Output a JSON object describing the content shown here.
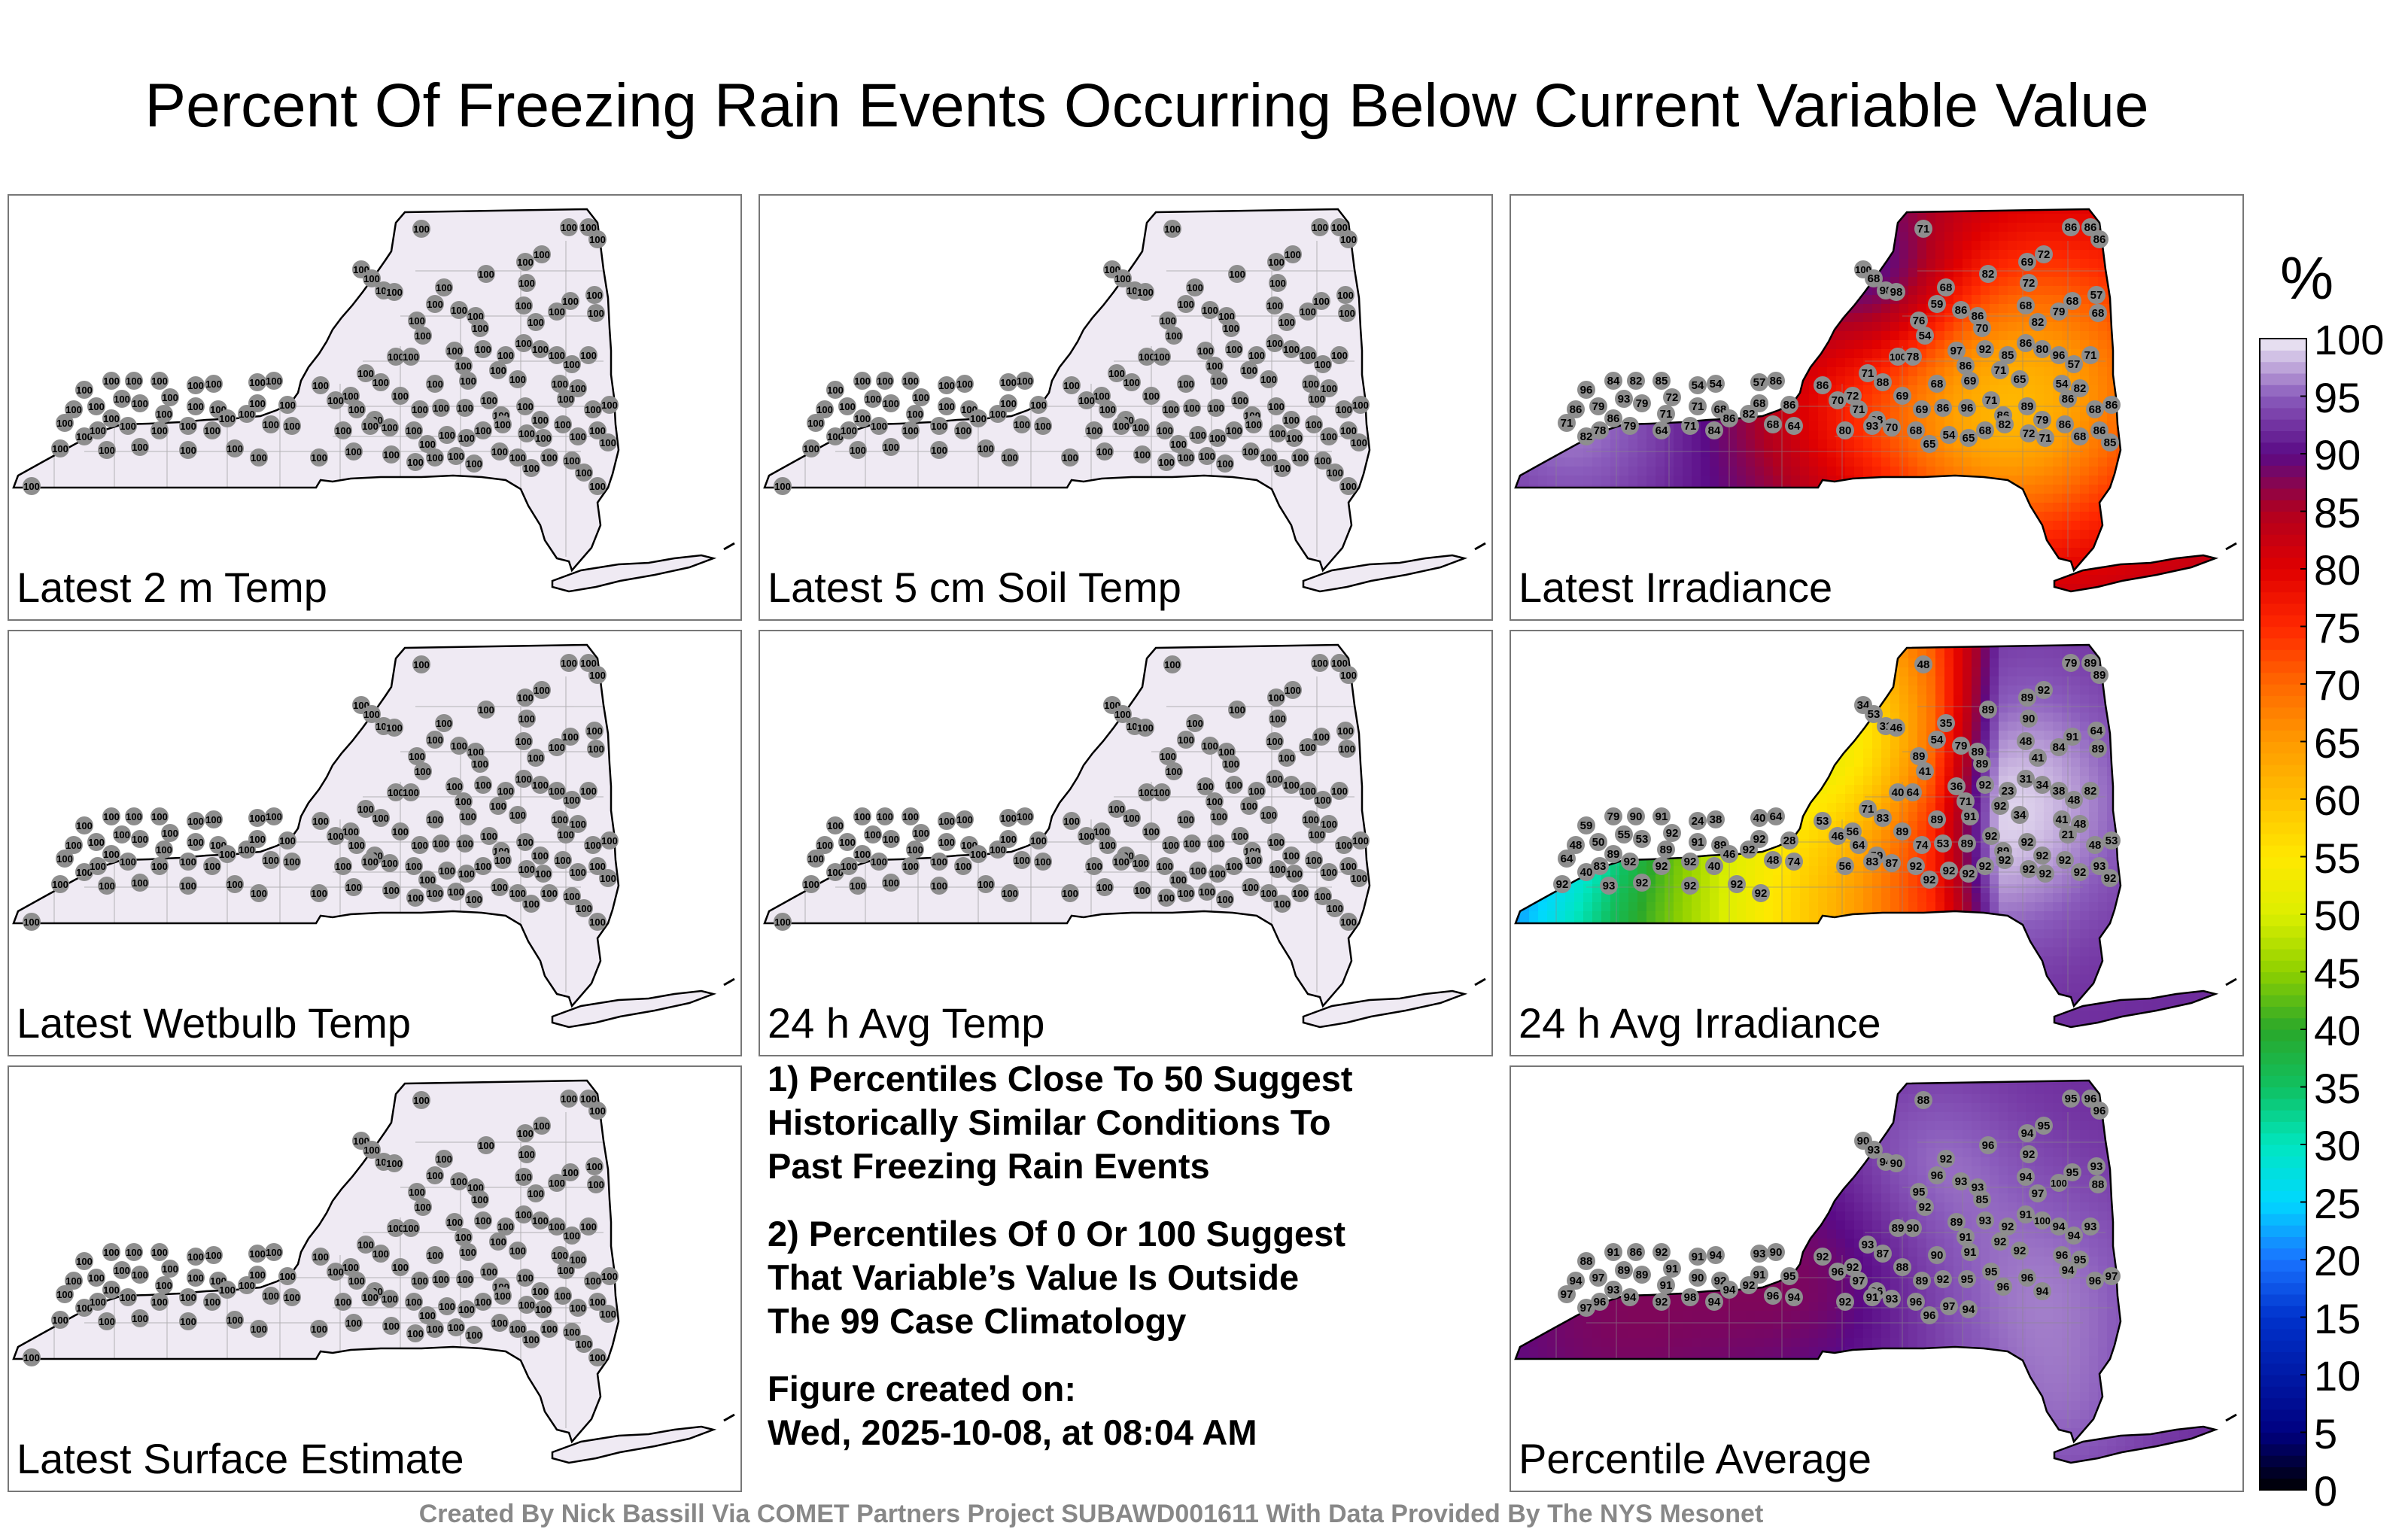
{
  "title": "Percent Of Freezing Rain Events Occurring Below Current Variable Value",
  "panels": [
    {
      "label": "Latest 2 m Temp",
      "fill": "uniform",
      "stations": [
        "100",
        "100",
        "100",
        "100",
        "100",
        "100",
        "100",
        "100",
        "100",
        "100",
        "100",
        "100",
        "100",
        "100",
        "100",
        "100",
        "100",
        "100",
        "100",
        "100",
        "100",
        "100",
        "100",
        "100",
        "100",
        "100",
        "100",
        "100",
        "100",
        "100",
        "100",
        "100",
        "100",
        "100",
        "100",
        "100",
        "100",
        "100",
        "100",
        "100",
        "100",
        "100",
        "100",
        "100",
        "100",
        "100",
        "100",
        "100",
        "100",
        "100",
        "100",
        "100",
        "100",
        "100",
        "100",
        "100",
        "100",
        "100",
        "100",
        "100",
        "100",
        "100",
        "100",
        "100",
        "100",
        "100",
        "100",
        "100",
        "100",
        "100",
        "100",
        "100",
        "100",
        "100",
        "100",
        "100",
        "100",
        "100",
        "100",
        "100",
        "100",
        "100",
        "100",
        "100",
        "100",
        "100",
        "100",
        "100",
        "100",
        "100",
        "100",
        "100",
        "100",
        "100",
        "100",
        "100",
        "100",
        "100",
        "100",
        "100",
        "100",
        "100",
        "100",
        "100",
        "100",
        "100",
        "100",
        "100",
        "100",
        "100",
        "100",
        "100",
        "100",
        "100",
        "100",
        "100",
        "100",
        "100",
        "100",
        "100",
        "100",
        "100",
        "100",
        "100",
        "100",
        "100"
      ]
    },
    {
      "label": "Latest 5 cm Soil Temp",
      "fill": "uniform",
      "stations": [
        "100",
        "100",
        "100",
        "100",
        "100",
        "100",
        "100",
        "100",
        "100",
        "100",
        "100",
        "100",
        "100",
        "100",
        "100",
        "100",
        "100",
        "100",
        "100",
        "100",
        "100",
        "100",
        "100",
        "100",
        "100",
        "100",
        "100",
        "100",
        "100",
        "100",
        "100",
        "100",
        "100",
        "100",
        "100",
        "100",
        "100",
        "100",
        "100",
        "100",
        "100",
        "100",
        "100",
        "100",
        "100",
        "100",
        "100",
        "100",
        "100",
        "100",
        "100",
        "100",
        "100",
        "100",
        "100",
        "100",
        "100",
        "100",
        "100",
        "100",
        "100",
        "100",
        "100",
        "100",
        "100",
        "100",
        "100",
        "100",
        "100",
        "100",
        "100",
        "100",
        "100",
        "100",
        "100",
        "100",
        "100",
        "100",
        "100",
        "100",
        "100",
        "100",
        "100",
        "100",
        "100",
        "100",
        "100",
        "100",
        "100",
        "100",
        "100",
        "100",
        "100",
        "100",
        "100",
        "100",
        "100",
        "100",
        "100",
        "100",
        "100",
        "100",
        "100",
        "100",
        "100",
        "100",
        "100",
        "100",
        "100",
        "100",
        "100",
        "100",
        "100",
        "100",
        "100",
        "100",
        "100",
        "100",
        "100",
        "100",
        "100",
        "100",
        "100",
        "100",
        "100",
        "100"
      ]
    },
    {
      "label": "Latest Irradiance",
      "fill": "irradiance",
      "stations": [
        "71",
        "86",
        "86",
        "86",
        "100",
        "68",
        "82",
        "69",
        "72",
        "98",
        "98",
        "68",
        "59",
        "72",
        "68",
        "57",
        "86",
        "86",
        "70",
        "76",
        "54",
        "68",
        "82",
        "79",
        "68",
        "100",
        "78",
        "97",
        "86",
        "92",
        "85",
        "86",
        "80",
        "96",
        "57",
        "71",
        "96",
        "84",
        "82",
        "85",
        "72",
        "54",
        "54",
        "57",
        "86",
        "86",
        "72",
        "71",
        "88",
        "69",
        "68",
        "69",
        "71",
        "65",
        "54",
        "82",
        "86",
        "79",
        "93",
        "79",
        "71",
        "71",
        "68",
        "82",
        "68",
        "86",
        "70",
        "71",
        "68",
        "69",
        "86",
        "96",
        "71",
        "86",
        "89",
        "79",
        "86",
        "68",
        "86",
        "71",
        "82",
        "78",
        "86",
        "79",
        "64",
        "71",
        "84",
        "86",
        "68",
        "64",
        "80",
        "93",
        "70",
        "68",
        "65",
        "54",
        "65",
        "68",
        "82",
        "72",
        "71",
        "86",
        "68",
        "86",
        "85"
      ]
    },
    {
      "label": "Latest Wetbulb Temp",
      "fill": "uniform",
      "stations": [
        "100",
        "100",
        "100",
        "100",
        "100",
        "100",
        "100",
        "100",
        "100",
        "100",
        "100",
        "100",
        "100",
        "100",
        "100",
        "100",
        "100",
        "100",
        "100",
        "100",
        "100",
        "100",
        "100",
        "100",
        "100",
        "100",
        "100",
        "100",
        "100",
        "100",
        "100",
        "100",
        "100",
        "100",
        "100",
        "100",
        "100",
        "100",
        "100",
        "100",
        "100",
        "100",
        "100",
        "100",
        "100",
        "100",
        "100",
        "100",
        "100",
        "100",
        "100",
        "100",
        "100",
        "100",
        "100",
        "100",
        "100",
        "100",
        "100",
        "100",
        "100",
        "100",
        "100",
        "100",
        "100",
        "100",
        "100",
        "100",
        "100",
        "100",
        "100",
        "100",
        "100",
        "100",
        "100",
        "100",
        "100",
        "100",
        "100",
        "100",
        "100",
        "100",
        "100",
        "100",
        "100",
        "100",
        "100",
        "100",
        "100",
        "100",
        "100",
        "100",
        "100",
        "100",
        "100",
        "100",
        "100",
        "100",
        "100",
        "100",
        "100",
        "100",
        "100",
        "100",
        "100",
        "100",
        "100",
        "100",
        "100",
        "100",
        "100",
        "100",
        "100",
        "100",
        "100",
        "100",
        "100",
        "100",
        "100",
        "100",
        "100",
        "100",
        "100",
        "100",
        "100",
        "100"
      ]
    },
    {
      "label": "24 h Avg Temp",
      "fill": "uniform",
      "stations": [
        "100",
        "100",
        "100",
        "100",
        "100",
        "100",
        "100",
        "100",
        "100",
        "100",
        "100",
        "100",
        "100",
        "100",
        "100",
        "100",
        "100",
        "100",
        "100",
        "100",
        "100",
        "100",
        "100",
        "100",
        "100",
        "100",
        "100",
        "100",
        "100",
        "100",
        "100",
        "100",
        "100",
        "100",
        "100",
        "100",
        "100",
        "100",
        "100",
        "100",
        "100",
        "100",
        "100",
        "100",
        "100",
        "100",
        "100",
        "100",
        "100",
        "100",
        "100",
        "100",
        "100",
        "100",
        "100",
        "100",
        "100",
        "100",
        "100",
        "100",
        "100",
        "100",
        "100",
        "100",
        "100",
        "100",
        "100",
        "100",
        "100",
        "100",
        "100",
        "100",
        "100",
        "100",
        "100",
        "100",
        "100",
        "100",
        "100",
        "100",
        "100",
        "100",
        "100",
        "100",
        "100",
        "100",
        "100",
        "100",
        "100",
        "100",
        "100",
        "100",
        "100",
        "100",
        "100",
        "100",
        "100",
        "100",
        "100",
        "100",
        "100",
        "100",
        "100",
        "100",
        "100",
        "100",
        "100",
        "100",
        "100",
        "100",
        "100",
        "100",
        "100",
        "100",
        "100",
        "100",
        "100",
        "100",
        "100",
        "100",
        "100",
        "100",
        "100",
        "100",
        "100",
        "100"
      ]
    },
    {
      "label": "24 h Avg Irradiance",
      "fill": "avgirr",
      "stations": [
        "48",
        "79",
        "89",
        "89",
        "34",
        "53",
        "89",
        "89",
        "92",
        "31",
        "46",
        "35",
        "54",
        "90",
        "91",
        "64",
        "79",
        "89",
        "89",
        "89",
        "41",
        "48",
        "41",
        "84",
        "89",
        "40",
        "64",
        "36",
        "71",
        "92",
        "23",
        "31",
        "34",
        "38",
        "48",
        "82",
        "59",
        "79",
        "90",
        "91",
        "92",
        "24",
        "38",
        "40",
        "64",
        "53",
        "56",
        "71",
        "83",
        "89",
        "89",
        "91",
        "92",
        "34",
        "41",
        "48",
        "48",
        "50",
        "55",
        "53",
        "89",
        "91",
        "89",
        "92",
        "92",
        "28",
        "46",
        "64",
        "59",
        "74",
        "53",
        "89",
        "92",
        "89",
        "92",
        "92",
        "21",
        "48",
        "53",
        "64",
        "40",
        "83",
        "89",
        "92",
        "92",
        "92",
        "40",
        "46",
        "48",
        "74",
        "56",
        "83",
        "87",
        "92",
        "92",
        "92",
        "92",
        "92",
        "92",
        "92",
        "92",
        "92",
        "92",
        "93",
        "92",
        "92",
        "93",
        "92",
        "92",
        "92",
        "92"
      ]
    },
    {
      "label": "Latest Surface Estimate",
      "fill": "uniform",
      "stations": [
        "100",
        "100",
        "100",
        "100",
        "100",
        "100",
        "100",
        "100",
        "100",
        "100",
        "100",
        "100",
        "100",
        "100",
        "100",
        "100",
        "100",
        "100",
        "100",
        "100",
        "100",
        "100",
        "100",
        "100",
        "100",
        "100",
        "100",
        "100",
        "100",
        "100",
        "100",
        "100",
        "100",
        "100",
        "100",
        "100",
        "100",
        "100",
        "100",
        "100",
        "100",
        "100",
        "100",
        "100",
        "100",
        "100",
        "100",
        "100",
        "100",
        "100",
        "100",
        "100",
        "100",
        "100",
        "100",
        "100",
        "100",
        "100",
        "100",
        "100",
        "100",
        "100",
        "100",
        "100",
        "100",
        "100",
        "100",
        "100",
        "100",
        "100",
        "100",
        "100",
        "100",
        "100",
        "100",
        "100",
        "100",
        "100",
        "100",
        "100",
        "100",
        "100",
        "100",
        "100",
        "100",
        "100",
        "100",
        "100",
        "100",
        "100",
        "100",
        "100",
        "100",
        "100",
        "100",
        "100",
        "100",
        "100",
        "100",
        "100",
        "100",
        "100",
        "100",
        "100",
        "100",
        "100",
        "100",
        "100",
        "100",
        "100",
        "100",
        "100",
        "100",
        "100",
        "100",
        "100",
        "100",
        "100",
        "100",
        "100",
        "100",
        "100",
        "100",
        "100",
        "100",
        "100"
      ]
    },
    {
      "label": "Percentile Average",
      "fill": "average",
      "stations": [
        "88",
        "95",
        "96",
        "96",
        "90",
        "93",
        "96",
        "94",
        "95",
        "94",
        "90",
        "92",
        "96",
        "92",
        "95",
        "93",
        "93",
        "93",
        "85",
        "95",
        "92",
        "94",
        "97",
        "100",
        "88",
        "89",
        "90",
        "89",
        "91",
        "93",
        "92",
        "91",
        "100",
        "94",
        "94",
        "93",
        "88",
        "91",
        "86",
        "92",
        "91",
        "91",
        "94",
        "93",
        "90",
        "92",
        "92",
        "93",
        "87",
        "88",
        "90",
        "91",
        "92",
        "92",
        "96",
        "95",
        "94",
        "97",
        "89",
        "89",
        "91",
        "90",
        "92",
        "92",
        "91",
        "95",
        "96",
        "97",
        "96",
        "89",
        "92",
        "95",
        "95",
        "96",
        "96",
        "94",
        "94",
        "96",
        "97",
        "97",
        "97",
        "96",
        "93",
        "94",
        "92",
        "98",
        "94",
        "94",
        "96",
        "94",
        "92",
        "91",
        "93",
        "96",
        "96",
        "97",
        "94"
      ]
    }
  ],
  "notes": {
    "note1": [
      "1) Percentiles Close To 50 Suggest",
      "Historically Similar Conditions To",
      "Past Freezing Rain Events"
    ],
    "note2": [
      "2) Percentiles Of 0 Or 100 Suggest",
      "That Variable’s Value Is Outside",
      "The 99 Case Climatology"
    ],
    "created": [
      "Figure created on:",
      "Wed, 2025-10-08, at 08:04 AM"
    ]
  },
  "footer": "Created By Nick Bassill Via COMET Partners Project SUBAWD001611 With Data Provided By The NYS Mesonet",
  "chart_data": {
    "type": "heatmap",
    "title": "Percent Of Freezing Rain Events Occurring Below Current Variable Value",
    "colorbar": {
      "unit": "%",
      "range": [
        0,
        100
      ],
      "ticks": [
        "0",
        "5",
        "10",
        "15",
        "20",
        "25",
        "30",
        "35",
        "40",
        "45",
        "50",
        "55",
        "60",
        "65",
        "70",
        "75",
        "80",
        "85",
        "90",
        "95",
        "100"
      ],
      "stops": [
        {
          "v": 0,
          "c": "#000000"
        },
        {
          "v": 5,
          "c": "#000080"
        },
        {
          "v": 15,
          "c": "#0033cc"
        },
        {
          "v": 20,
          "c": "#1a73ff"
        },
        {
          "v": 25,
          "c": "#00d8ff"
        },
        {
          "v": 30,
          "c": "#00e6c0"
        },
        {
          "v": 35,
          "c": "#10c060"
        },
        {
          "v": 40,
          "c": "#2aa82a"
        },
        {
          "v": 45,
          "c": "#8ed000"
        },
        {
          "v": 50,
          "c": "#dcef00"
        },
        {
          "v": 55,
          "c": "#ffe800"
        },
        {
          "v": 60,
          "c": "#ffc000"
        },
        {
          "v": 65,
          "c": "#ff9a00"
        },
        {
          "v": 70,
          "c": "#ff6800"
        },
        {
          "v": 75,
          "c": "#ff2800"
        },
        {
          "v": 80,
          "c": "#e00000"
        },
        {
          "v": 85,
          "c": "#b00020"
        },
        {
          "v": 90,
          "c": "#5a0a86"
        },
        {
          "v": 95,
          "c": "#8a5cbc"
        },
        {
          "v": 100,
          "c": "#f0ecf6"
        }
      ]
    },
    "panels": [
      {
        "name": "Latest 2 m Temp",
        "value_range": [
          100,
          100
        ]
      },
      {
        "name": "Latest 5 cm Soil Temp",
        "value_range": [
          100,
          100
        ]
      },
      {
        "name": "Latest Irradiance",
        "value_range": [
          54,
          100
        ]
      },
      {
        "name": "Latest Wetbulb Temp",
        "value_range": [
          100,
          100
        ]
      },
      {
        "name": "24 h Avg Temp",
        "value_range": [
          100,
          100
        ]
      },
      {
        "name": "24 h Avg Irradiance",
        "value_range": [
          21,
          93
        ]
      },
      {
        "name": "Latest Surface Estimate",
        "value_range": [
          100,
          100
        ]
      },
      {
        "name": "Percentile Average",
        "value_range": [
          85,
          100
        ]
      }
    ]
  }
}
